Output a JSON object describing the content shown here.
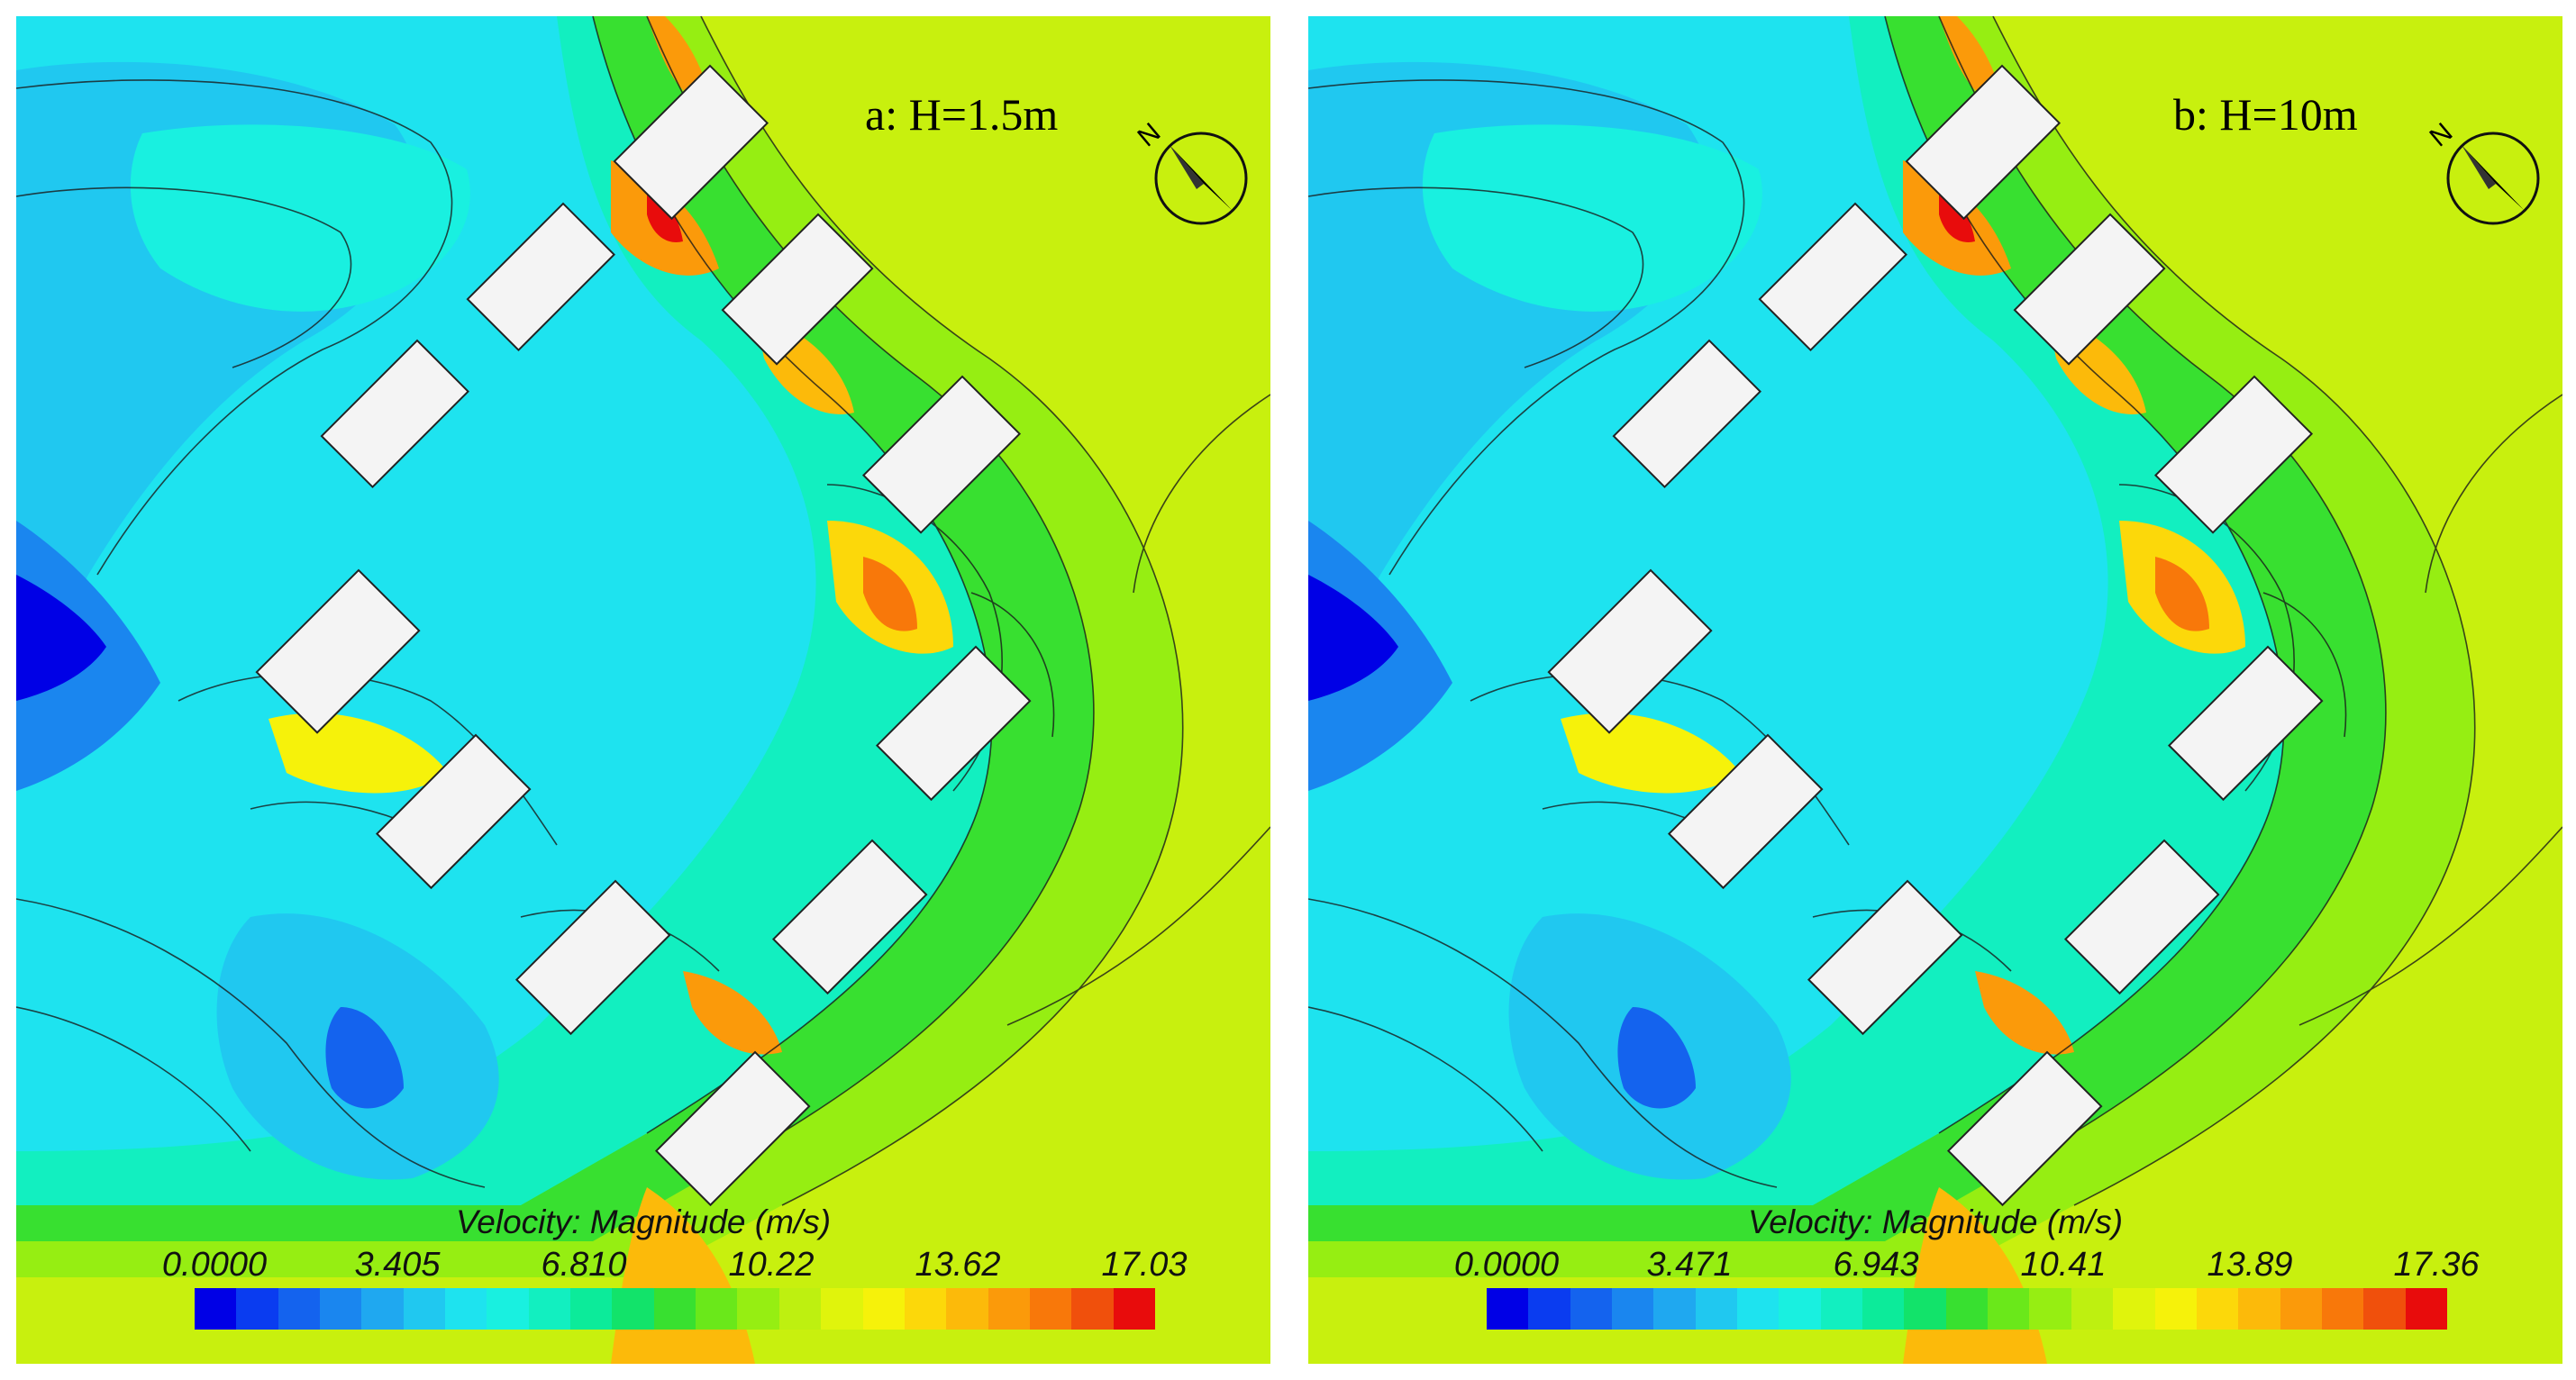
{
  "panels": [
    {
      "id": "a",
      "label": "a: H=1.5m",
      "legend": {
        "title": "Velocity: Magnitude (m/s)",
        "ticks": [
          "0.0000",
          "3.405",
          "6.810",
          "10.22",
          "13.62",
          "17.03"
        ]
      }
    },
    {
      "id": "b",
      "label": "b: H=10m",
      "legend": {
        "title": "Velocity: Magnitude (m/s)",
        "ticks": [
          "0.0000",
          "3.471",
          "6.943",
          "10.41",
          "13.89",
          "17.36"
        ]
      }
    }
  ],
  "compass": {
    "letter": "N",
    "icon": "north-arrow-icon"
  },
  "colormap": [
    "#0000e6",
    "#0a3cf0",
    "#1463ee",
    "#1a86ef",
    "#1fa8f0",
    "#20c8f0",
    "#1ee3ef",
    "#19f0e0",
    "#12efc0",
    "#0ceb9a",
    "#12e36a",
    "#38e030",
    "#6ae81a",
    "#96ee12",
    "#bef010",
    "#e0f40c",
    "#f6f20a",
    "#fcd80a",
    "#fcba0a",
    "#fb9a0a",
    "#f8780a",
    "#f0500c",
    "#e80c0c"
  ]
}
